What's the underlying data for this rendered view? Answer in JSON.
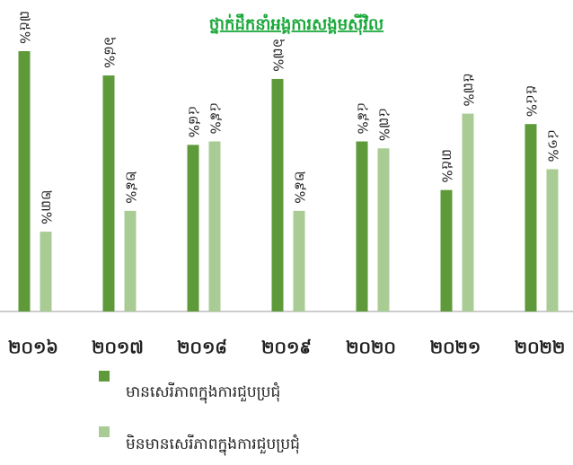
{
  "chart_data": {
    "type": "bar",
    "title": "ថ្នាក់ដឹកនាំអង្គការសង្គមស៊ីវិល",
    "categories": [
      "២០១៦",
      "២០១៧",
      "២០១៨",
      "២០១៩",
      "២០២០",
      "២០២១",
      "២០២២"
    ],
    "series": [
      {
        "name": "មានសេរីភាពក្នុងការជួបប្រជុំ",
        "color": "#5e9a3a",
        "values": [
          75,
          68,
          48,
          67,
          49,
          35,
          54
        ],
        "value_labels": [
          "៧៥%",
          "៦៨%",
          "៤៨%",
          "៦៧%",
          "៤៩%",
          "៣៥%",
          "៥៤%"
        ]
      },
      {
        "name": "មិនមានសេរីភាពក្នុងការជួបប្រជុំ",
        "color": "#a9cc94",
        "values": [
          23,
          29,
          49,
          29,
          47,
          57,
          41
        ],
        "value_labels": [
          "២៣%",
          "២៩%",
          "៤៩%",
          "២៩%",
          "៤៧%",
          "៥៧%",
          "៤១%"
        ]
      }
    ],
    "ylim": [
      0,
      75
    ]
  }
}
